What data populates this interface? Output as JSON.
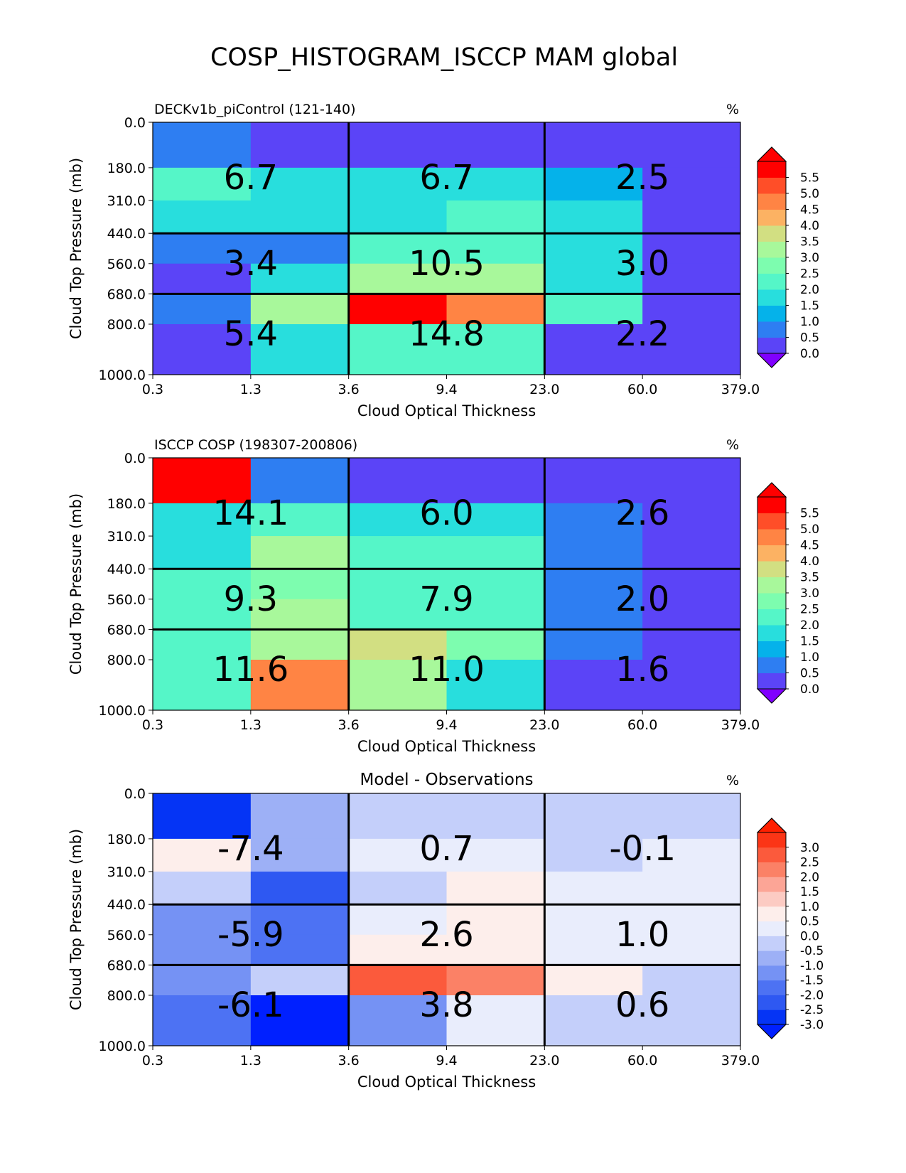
{
  "figure": {
    "title": "COSP_HISTOGRAM_ISCCP MAM global"
  },
  "chart_data": [
    {
      "type": "heatmap",
      "title": "DECKv1b_piControl (121-140)",
      "title_position": "left",
      "units": "%",
      "xlabel": "Cloud Optical Thickness",
      "ylabel": "Cloud Top Pressure (mb)",
      "x_ticks": [
        "0.3",
        "1.3",
        "3.6",
        "9.4",
        "23.0",
        "60.0",
        "379.0"
      ],
      "y_ticks": [
        "0.0",
        "180.0",
        "310.0",
        "440.0",
        "560.0",
        "680.0",
        "800.0",
        "1000.0"
      ],
      "cells": [
        [
          0.8,
          0.4,
          0.3,
          0.3,
          0.3,
          0.3
        ],
        [
          2.3,
          1.5,
          1.5,
          1.5,
          1.0,
          0.3
        ],
        [
          1.5,
          1.5,
          1.5,
          2.3,
          1.5,
          0.3
        ],
        [
          0.8,
          0.8,
          2.0,
          2.0,
          1.5,
          0.3
        ],
        [
          0.3,
          1.5,
          3.2,
          3.2,
          1.5,
          0.3
        ],
        [
          0.8,
          3.2,
          5.8,
          4.8,
          2.0,
          0.3
        ],
        [
          0.3,
          1.5,
          2.3,
          2.0,
          0.3,
          0.3
        ]
      ],
      "block_labels": [
        [
          "6.7",
          "6.7",
          "2.5"
        ],
        [
          "3.4",
          "10.5",
          "3.0"
        ],
        [
          "5.4",
          "14.8",
          "2.2"
        ]
      ],
      "colorbar": {
        "ticks": [
          "0.0",
          "0.5",
          "1.0",
          "1.5",
          "2.0",
          "2.5",
          "3.0",
          "3.5",
          "4.0",
          "4.5",
          "5.0",
          "5.5"
        ],
        "extend": "both",
        "colors": [
          "#5b44f7",
          "#2e7ef2",
          "#05b2ea",
          "#28dedd",
          "#55f6c8",
          "#7dfdaf",
          "#a8f89b",
          "#d2df82",
          "#fcb263",
          "#ff8444",
          "#ff4e28",
          "#ff0000"
        ],
        "under_color": "#8000ff",
        "over_color": "#ff0000"
      }
    },
    {
      "type": "heatmap",
      "title": "ISCCP COSP (198307-200806)",
      "title_position": "left",
      "units": "%",
      "xlabel": "Cloud Optical Thickness",
      "ylabel": "Cloud Top Pressure (mb)",
      "x_ticks": [
        "0.3",
        "1.3",
        "3.6",
        "9.4",
        "23.0",
        "60.0",
        "379.0"
      ],
      "y_ticks": [
        "0.0",
        "180.0",
        "310.0",
        "440.0",
        "560.0",
        "680.0",
        "800.0",
        "1000.0"
      ],
      "cells": [
        [
          5.8,
          0.8,
          0.3,
          0.3,
          0.3,
          0.3
        ],
        [
          1.5,
          2.3,
          1.5,
          1.5,
          0.8,
          0.3
        ],
        [
          1.5,
          3.2,
          2.0,
          2.0,
          0.8,
          0.3
        ],
        [
          2.0,
          2.8,
          2.0,
          2.0,
          0.8,
          0.3
        ],
        [
          2.0,
          3.2,
          2.3,
          2.3,
          0.8,
          0.3
        ],
        [
          2.0,
          3.2,
          3.7,
          2.8,
          0.8,
          0.3
        ],
        [
          2.0,
          4.8,
          3.2,
          1.5,
          0.3,
          0.3
        ]
      ],
      "block_labels": [
        [
          "14.1",
          "6.0",
          "2.6"
        ],
        [
          "9.3",
          "7.9",
          "2.0"
        ],
        [
          "11.6",
          "11.0",
          "1.6"
        ]
      ],
      "colorbar": {
        "ticks": [
          "0.0",
          "0.5",
          "1.0",
          "1.5",
          "2.0",
          "2.5",
          "3.0",
          "3.5",
          "4.0",
          "4.5",
          "5.0",
          "5.5"
        ],
        "extend": "both",
        "colors": [
          "#5b44f7",
          "#2e7ef2",
          "#05b2ea",
          "#28dedd",
          "#55f6c8",
          "#7dfdaf",
          "#a8f89b",
          "#d2df82",
          "#fcb263",
          "#ff8444",
          "#ff4e28",
          "#ff0000"
        ],
        "under_color": "#8000ff",
        "over_color": "#ff0000"
      }
    },
    {
      "type": "heatmap",
      "title": "Model - Observations",
      "title_position": "center",
      "units": "%",
      "xlabel": "Cloud Optical Thickness",
      "ylabel": "Cloud Top Pressure (mb)",
      "x_ticks": [
        "0.3",
        "1.3",
        "3.6",
        "9.4",
        "23.0",
        "60.0",
        "379.0"
      ],
      "y_ticks": [
        "0.0",
        "180.0",
        "310.0",
        "440.0",
        "560.0",
        "680.0",
        "800.0",
        "1000.0"
      ],
      "cells": [
        [
          -3.0,
          -0.6,
          -0.1,
          -0.1,
          -0.1,
          -0.1
        ],
        [
          0.6,
          -0.6,
          0.1,
          0.1,
          -0.1,
          0.1
        ],
        [
          -0.1,
          -2.3,
          -0.1,
          0.6,
          0.1,
          0.1
        ],
        [
          -1.3,
          -1.7,
          0.1,
          0.6,
          0.1,
          0.1
        ],
        [
          -1.3,
          -1.7,
          0.6,
          0.6,
          0.1,
          0.1
        ],
        [
          -1.3,
          -0.1,
          2.8,
          2.2,
          0.6,
          -0.1
        ],
        [
          -1.7,
          -3.2,
          -1.3,
          0.1,
          -0.1,
          -0.1
        ]
      ],
      "block_labels": [
        [
          "-7.4",
          "0.7",
          "-0.1"
        ],
        [
          "-5.9",
          "2.6",
          "1.0"
        ],
        [
          "-6.1",
          "3.8",
          "0.6"
        ]
      ],
      "colorbar": {
        "ticks": [
          "-3.0",
          "-2.5",
          "-2.0",
          "-1.5",
          "-1.0",
          "-0.5",
          "0.0",
          "0.5",
          "1.0",
          "1.5",
          "2.0",
          "2.5",
          "3.0"
        ],
        "extend": "both",
        "colors": [
          "#0534f5",
          "#2e58f2",
          "#4d72f3",
          "#7592f4",
          "#9db0f6",
          "#c4cffa",
          "#e9edfc",
          "#fdeeeb",
          "#fccbc3",
          "#fca596",
          "#fb8166",
          "#fb5a3c",
          "#fb3516"
        ],
        "under_color": "#0020ff",
        "over_color": "#ff2000"
      }
    }
  ]
}
